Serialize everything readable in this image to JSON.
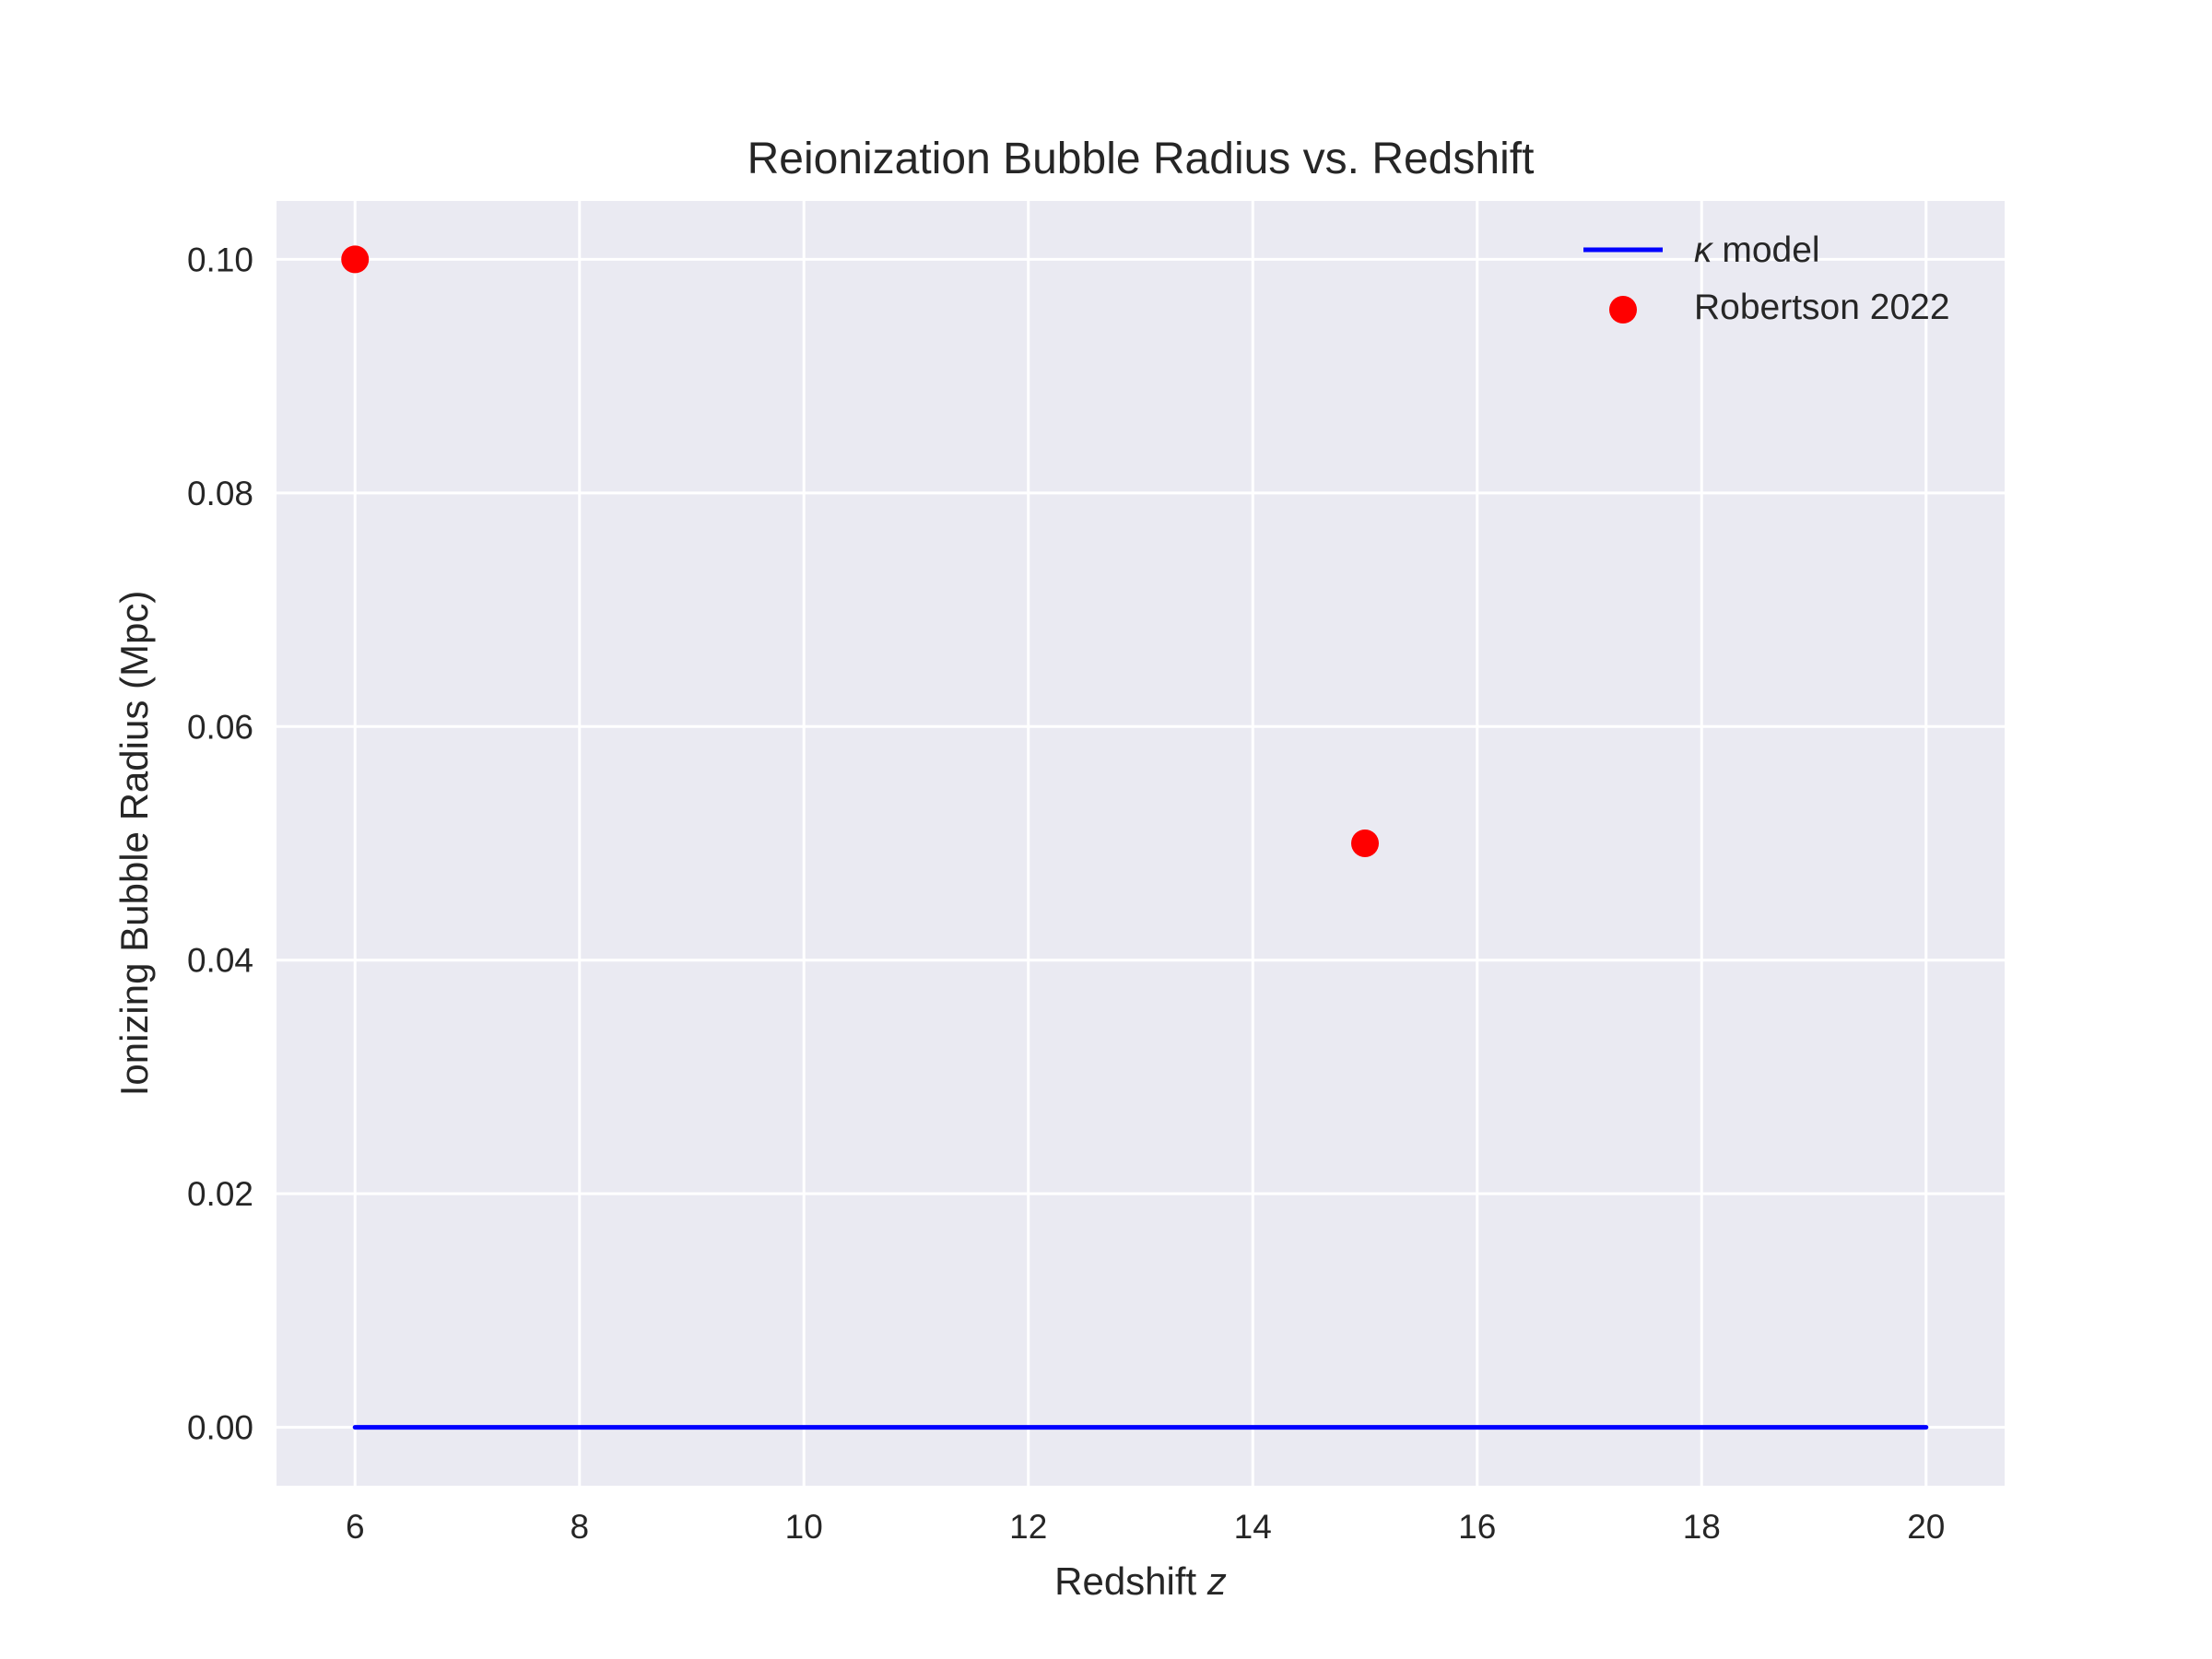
{
  "chart_data": {
    "type": "line",
    "title": "Reionization Bubble Radius vs. Redshift",
    "xlabel": "Redshift",
    "xlabel_var": "z",
    "ylabel": "Ionizing Bubble Radius (Mpc)",
    "xlim": [
      5.3,
      20.7
    ],
    "ylim": [
      -0.005,
      0.105
    ],
    "xticks": [
      6,
      8,
      10,
      12,
      14,
      16,
      18,
      20
    ],
    "yticks": [
      0.0,
      0.02,
      0.04,
      0.06,
      0.08,
      0.1
    ],
    "xtick_labels": [
      "6",
      "8",
      "10",
      "12",
      "14",
      "16",
      "18",
      "20"
    ],
    "ytick_labels": [
      "0.00",
      "0.02",
      "0.04",
      "0.06",
      "0.08",
      "0.10"
    ],
    "grid": true,
    "background": "#eaeaf2",
    "legend_position": "upper right",
    "series": [
      {
        "name_symbol": "κ",
        "name": "model",
        "type": "line",
        "color": "#0000ff",
        "x": [
          6,
          20
        ],
        "y": [
          0.0,
          0.0
        ]
      },
      {
        "name": "Robertson 2022",
        "type": "scatter",
        "color": "#ff0000",
        "x": [
          6,
          15
        ],
        "y": [
          0.1,
          0.05
        ]
      }
    ]
  }
}
